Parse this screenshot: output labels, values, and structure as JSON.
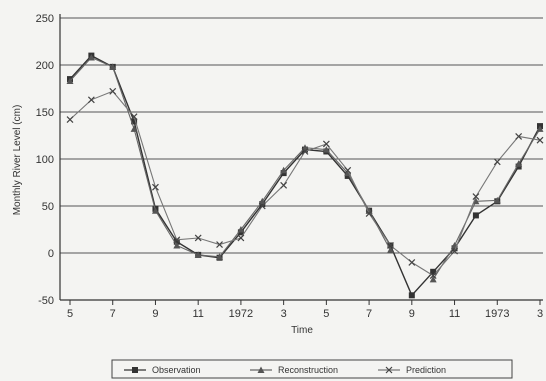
{
  "chart_data": {
    "type": "line",
    "title": "",
    "xlabel": "Time",
    "ylabel": "Monthly River Level (cm)",
    "ylim": [
      -50,
      250
    ],
    "yticks": [
      -50,
      0,
      50,
      100,
      150,
      200,
      250
    ],
    "x_tick_labels": [
      "5",
      "7",
      "9",
      "11",
      "1972",
      "3",
      "5",
      "7",
      "9",
      "11",
      "1973",
      "3"
    ],
    "grid": "horizontal",
    "legend_position": "bottom",
    "x": [
      "1971-05",
      "1971-06",
      "1971-07",
      "1971-08",
      "1971-09",
      "1971-10",
      "1971-11",
      "1971-12",
      "1972-01",
      "1972-02",
      "1972-03",
      "1972-04",
      "1972-05",
      "1972-06",
      "1972-07",
      "1972-08",
      "1972-09",
      "1972-10",
      "1972-11",
      "1972-12",
      "1973-01",
      "1973-02",
      "1973-03"
    ],
    "series": [
      {
        "name": "Observation",
        "marker": "square",
        "values": [
          185,
          210,
          198,
          140,
          47,
          12,
          -2,
          -5,
          22,
          52,
          85,
          110,
          108,
          82,
          45,
          8,
          -45,
          -20,
          5,
          40,
          55,
          92,
          135
        ]
      },
      {
        "name": "Reconstruction",
        "marker": "triangle",
        "values": [
          183,
          208,
          198,
          132,
          45,
          8,
          -2,
          -4,
          25,
          55,
          88,
          112,
          110,
          85,
          45,
          3,
          null,
          -28,
          8,
          55,
          56,
          95,
          132
        ]
      },
      {
        "name": "Prediction",
        "marker": "x",
        "values": [
          142,
          163,
          172,
          145,
          70,
          14,
          16,
          9,
          16,
          50,
          72,
          108,
          116,
          88,
          42,
          8,
          -10,
          -24,
          2,
          60,
          97,
          124,
          120
        ]
      }
    ]
  }
}
